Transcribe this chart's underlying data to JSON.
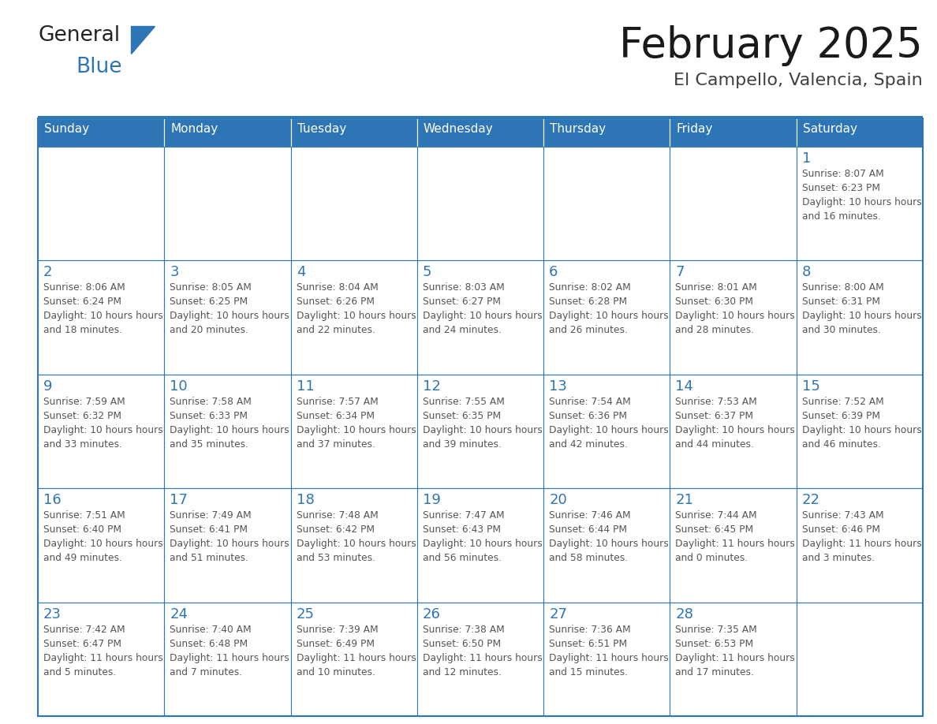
{
  "title": "February 2025",
  "subtitle": "El Campello, Valencia, Spain",
  "header_bg": "#2e75b6",
  "header_text": "#ffffff",
  "cell_bg": "#ffffff",
  "border_color": "#2e75b6",
  "title_color": "#1a1a1a",
  "subtitle_color": "#404040",
  "day_number_color": "#2e75b6",
  "cell_text_color": "#555555",
  "days_of_week": [
    "Sunday",
    "Monday",
    "Tuesday",
    "Wednesday",
    "Thursday",
    "Friday",
    "Saturday"
  ],
  "calendar": [
    [
      null,
      null,
      null,
      null,
      null,
      null,
      {
        "day": 1,
        "sunrise": "8:07 AM",
        "sunset": "6:23 PM",
        "daylight": "10 hours and 16 minutes."
      }
    ],
    [
      {
        "day": 2,
        "sunrise": "8:06 AM",
        "sunset": "6:24 PM",
        "daylight": "10 hours and 18 minutes."
      },
      {
        "day": 3,
        "sunrise": "8:05 AM",
        "sunset": "6:25 PM",
        "daylight": "10 hours and 20 minutes."
      },
      {
        "day": 4,
        "sunrise": "8:04 AM",
        "sunset": "6:26 PM",
        "daylight": "10 hours and 22 minutes."
      },
      {
        "day": 5,
        "sunrise": "8:03 AM",
        "sunset": "6:27 PM",
        "daylight": "10 hours and 24 minutes."
      },
      {
        "day": 6,
        "sunrise": "8:02 AM",
        "sunset": "6:28 PM",
        "daylight": "10 hours and 26 minutes."
      },
      {
        "day": 7,
        "sunrise": "8:01 AM",
        "sunset": "6:30 PM",
        "daylight": "10 hours and 28 minutes."
      },
      {
        "day": 8,
        "sunrise": "8:00 AM",
        "sunset": "6:31 PM",
        "daylight": "10 hours and 30 minutes."
      }
    ],
    [
      {
        "day": 9,
        "sunrise": "7:59 AM",
        "sunset": "6:32 PM",
        "daylight": "10 hours and 33 minutes."
      },
      {
        "day": 10,
        "sunrise": "7:58 AM",
        "sunset": "6:33 PM",
        "daylight": "10 hours and 35 minutes."
      },
      {
        "day": 11,
        "sunrise": "7:57 AM",
        "sunset": "6:34 PM",
        "daylight": "10 hours and 37 minutes."
      },
      {
        "day": 12,
        "sunrise": "7:55 AM",
        "sunset": "6:35 PM",
        "daylight": "10 hours and 39 minutes."
      },
      {
        "day": 13,
        "sunrise": "7:54 AM",
        "sunset": "6:36 PM",
        "daylight": "10 hours and 42 minutes."
      },
      {
        "day": 14,
        "sunrise": "7:53 AM",
        "sunset": "6:37 PM",
        "daylight": "10 hours and 44 minutes."
      },
      {
        "day": 15,
        "sunrise": "7:52 AM",
        "sunset": "6:39 PM",
        "daylight": "10 hours and 46 minutes."
      }
    ],
    [
      {
        "day": 16,
        "sunrise": "7:51 AM",
        "sunset": "6:40 PM",
        "daylight": "10 hours and 49 minutes."
      },
      {
        "day": 17,
        "sunrise": "7:49 AM",
        "sunset": "6:41 PM",
        "daylight": "10 hours and 51 minutes."
      },
      {
        "day": 18,
        "sunrise": "7:48 AM",
        "sunset": "6:42 PM",
        "daylight": "10 hours and 53 minutes."
      },
      {
        "day": 19,
        "sunrise": "7:47 AM",
        "sunset": "6:43 PM",
        "daylight": "10 hours and 56 minutes."
      },
      {
        "day": 20,
        "sunrise": "7:46 AM",
        "sunset": "6:44 PM",
        "daylight": "10 hours and 58 minutes."
      },
      {
        "day": 21,
        "sunrise": "7:44 AM",
        "sunset": "6:45 PM",
        "daylight": "11 hours and 0 minutes."
      },
      {
        "day": 22,
        "sunrise": "7:43 AM",
        "sunset": "6:46 PM",
        "daylight": "11 hours and 3 minutes."
      }
    ],
    [
      {
        "day": 23,
        "sunrise": "7:42 AM",
        "sunset": "6:47 PM",
        "daylight": "11 hours and 5 minutes."
      },
      {
        "day": 24,
        "sunrise": "7:40 AM",
        "sunset": "6:48 PM",
        "daylight": "11 hours and 7 minutes."
      },
      {
        "day": 25,
        "sunrise": "7:39 AM",
        "sunset": "6:49 PM",
        "daylight": "11 hours and 10 minutes."
      },
      {
        "day": 26,
        "sunrise": "7:38 AM",
        "sunset": "6:50 PM",
        "daylight": "11 hours and 12 minutes."
      },
      {
        "day": 27,
        "sunrise": "7:36 AM",
        "sunset": "6:51 PM",
        "daylight": "11 hours and 15 minutes."
      },
      {
        "day": 28,
        "sunrise": "7:35 AM",
        "sunset": "6:53 PM",
        "daylight": "11 hours and 17 minutes."
      },
      null
    ]
  ],
  "logo_text1": "General",
  "logo_text2": "Blue",
  "logo_color1": "#222222",
  "logo_color2": "#2e75b6",
  "logo_triangle_color": "#2e75b6",
  "fig_width": 11.88,
  "fig_height": 9.18,
  "dpi": 100
}
